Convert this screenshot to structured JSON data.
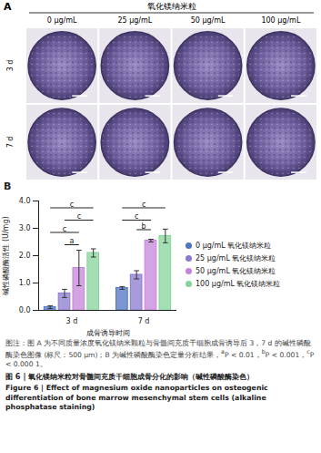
{
  "panel_a": {
    "label": "A",
    "header": "氧化镁纳米粒",
    "columns": [
      "0 μg/mL",
      "25 μg/mL",
      "50 μg/mL",
      "100 μg/mL"
    ],
    "rows": [
      "3 d",
      "7 d"
    ]
  },
  "chart_data": {
    "type": "bar",
    "panel_label": "B",
    "categories": [
      "3 d",
      "7 d"
    ],
    "x_label": "成骨诱导时间",
    "y_label": "碱性磷酸酶活性 (U/mg)",
    "ylim": [
      0,
      4
    ],
    "yticks": [
      0,
      1,
      2,
      3,
      4
    ],
    "legend": "right",
    "series": [
      {
        "name": "0 μg/mL 氧化镁纳米粒",
        "color": "#4f74c0",
        "values": [
          0.12,
          0.82
        ],
        "errors": [
          0.05,
          0.05
        ]
      },
      {
        "name": "25 μg/mL 氧化镁纳米粒",
        "color": "#8a79d0",
        "values": [
          0.62,
          1.3
        ],
        "errors": [
          0.15,
          0.15
        ]
      },
      {
        "name": "50 μg/mL 氧化镁纳米粒",
        "color": "#c584db",
        "values": [
          1.55,
          2.55
        ],
        "errors": [
          0.65,
          0.05
        ]
      },
      {
        "name": "100 μg/mL 氧化镁纳米粒",
        "color": "#86d49b",
        "values": [
          2.1,
          2.72
        ],
        "errors": [
          0.15,
          0.25
        ]
      }
    ],
    "brackets": [
      {
        "category": "3 d",
        "from": 0,
        "to": 3,
        "y": 3.75,
        "label": "c"
      },
      {
        "category": "3 d",
        "from": 1,
        "to": 3,
        "y": 3.3,
        "label": "c"
      },
      {
        "category": "3 d",
        "from": 0,
        "to": 2,
        "y": 2.85,
        "label": "c"
      },
      {
        "category": "3 d",
        "from": 1,
        "to": 2,
        "y": 2.4,
        "label": "a"
      },
      {
        "category": "7 d",
        "from": 0,
        "to": 3,
        "y": 3.75,
        "label": "c"
      },
      {
        "category": "7 d",
        "from": 0,
        "to": 2,
        "y": 3.3,
        "label": "c"
      },
      {
        "category": "7 d",
        "from": 1,
        "to": 2,
        "y": 2.95,
        "label": "b"
      }
    ]
  },
  "caption": {
    "note": "图注：图 A 为不同质量浓度氧化镁纳米颗粒与骨髓间充质干细胞成骨诱导后 3，7 d 的碱性磷酸酶染色图像 (标尺：500 μm)；B 为碱性磷酸酶染色定量分析结果，",
    "significance": [
      {
        "mark": "a",
        "text": "P < 0.01，"
      },
      {
        "mark": "b",
        "text": "P < 0.001，"
      },
      {
        "mark": "c",
        "text": "P < 0.000 1。"
      }
    ],
    "title_zh": "图 6 | 氧化镁纳米粒对骨髓间充质干细胞成骨分化的影响（碱性磷酸酶染色）",
    "title_en": "Figure 6 | Effect of magnesium oxide nanoparticles on osteogenic differentiation of bone marrow mesenchymal stem cells (alkaline phosphatase staining)"
  }
}
